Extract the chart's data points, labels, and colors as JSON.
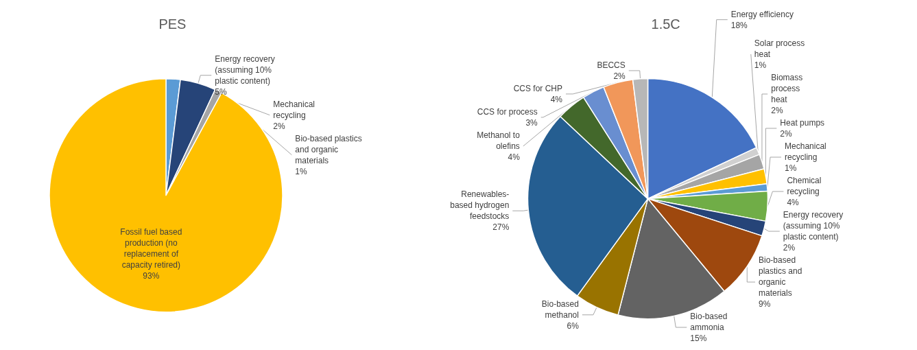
{
  "chart_data": [
    {
      "type": "pie",
      "title": "PES",
      "categories": [
        "Mechanical\nrecycling",
        "Energy recovery\n(assuming 10%\nplastic content)",
        "Bio-based plastics\nand organic\nmaterials",
        "Fossil fuel based\nproduction (no\nreplacement of\ncapacity retired)"
      ],
      "values": [
        2,
        5,
        1,
        93
      ],
      "value_labels": [
        "2%",
        "5%",
        "1%",
        "93%"
      ],
      "colors": [
        "#5b9bd5",
        "#264478",
        "#a5a5a5",
        "#ffc000"
      ],
      "legend": false
    },
    {
      "type": "pie",
      "title": "1.5C",
      "categories": [
        "Energy efficiency",
        "Solar process\nheat",
        "Biomass\nprocess\nheat",
        "Heat pumps",
        "Mechanical\nrecycling",
        "Chemical\nrecycling",
        "Energy recovery\n(assuming 10%\nplastic content)",
        "Bio-based\nplastics and\norganic\nmaterials",
        "Bio-based\nammonia",
        "Bio-based\nmethanol",
        "Renewables-\nbased hydrogen\nfeedstocks",
        "Methanol to\nolefins",
        "CCS for process",
        "CCS for CHP",
        "BECCS"
      ],
      "values": [
        18,
        1,
        2,
        2,
        1,
        4,
        2,
        9,
        15,
        6,
        27,
        4,
        3,
        4,
        2
      ],
      "value_labels": [
        "18%",
        "1%",
        "2%",
        "2%",
        "1%",
        "4%",
        "2%",
        "9%",
        "15%",
        "6%",
        "27%",
        "4%",
        "3%",
        "4%",
        "2%"
      ],
      "colors": [
        "#4472c4",
        "#d0d0d0",
        "#a5a5a5",
        "#ffc000",
        "#5b9bd5",
        "#70ad47",
        "#264478",
        "#9e480e",
        "#636363",
        "#997300",
        "#255e91",
        "#43682b",
        "#698ed0",
        "#f1975a",
        "#b7b7b7"
      ],
      "legend": false
    }
  ]
}
